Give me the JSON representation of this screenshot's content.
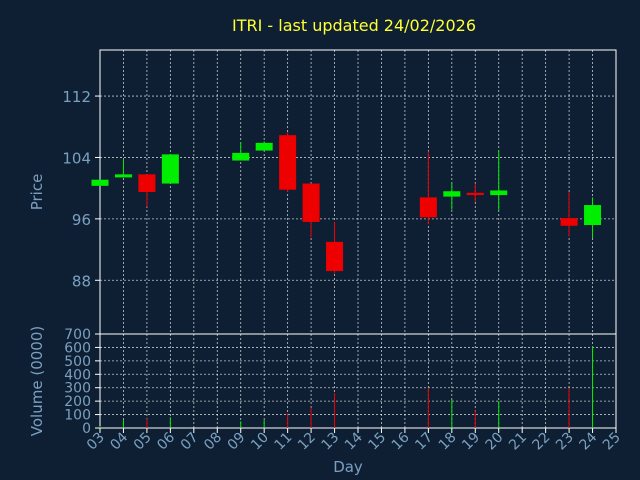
{
  "chart_data": {
    "type": "candlestick",
    "title": "ITRI - last updated 24/02/2026",
    "xlabel": "Day",
    "price_panel": {
      "ylabel": "Price",
      "ylim": [
        81,
        118
      ],
      "yticks": [
        88,
        96,
        104,
        112
      ],
      "grid": true
    },
    "volume_panel": {
      "ylabel": "Volume (0000)",
      "ylim": [
        0,
        700
      ],
      "yticks": [
        0,
        100,
        200,
        300,
        400,
        500,
        600,
        700
      ],
      "grid": true
    },
    "x_ticks": [
      "03",
      "04",
      "05",
      "06",
      "07",
      "08",
      "09",
      "10",
      "11",
      "12",
      "13",
      "14",
      "15",
      "16",
      "17",
      "18",
      "19",
      "20",
      "21",
      "22",
      "23",
      "24",
      "25"
    ],
    "candles": [
      {
        "day": "03",
        "open": 100.3,
        "high": 101.1,
        "low": 100.3,
        "close": 101.1,
        "volume": 15,
        "dir": "up"
      },
      {
        "day": "04",
        "open": 101.4,
        "high": 103.8,
        "low": 101.4,
        "close": 101.8,
        "volume": 60,
        "dir": "up"
      },
      {
        "day": "05",
        "open": 101.8,
        "high": 101.8,
        "low": 97.6,
        "close": 99.5,
        "volume": 70,
        "dir": "down"
      },
      {
        "day": "06",
        "open": 100.6,
        "high": 104.4,
        "low": 100.6,
        "close": 104.4,
        "volume": 80,
        "dir": "up"
      },
      {
        "day": "09",
        "open": 103.6,
        "high": 106.0,
        "low": 103.6,
        "close": 104.6,
        "volume": 50,
        "dir": "up"
      },
      {
        "day": "10",
        "open": 104.9,
        "high": 106.1,
        "low": 104.9,
        "close": 105.9,
        "volume": 60,
        "dir": "up"
      },
      {
        "day": "11",
        "open": 106.9,
        "high": 107.3,
        "low": 99.5,
        "close": 99.8,
        "volume": 110,
        "dir": "down"
      },
      {
        "day": "12",
        "open": 100.6,
        "high": 100.6,
        "low": 93.6,
        "close": 95.6,
        "volume": 150,
        "dir": "down"
      },
      {
        "day": "13",
        "open": 93.0,
        "high": 95.6,
        "low": 88.9,
        "close": 89.2,
        "volume": 260,
        "dir": "down"
      },
      {
        "day": "17",
        "open": 98.8,
        "high": 104.8,
        "low": 95.3,
        "close": 96.2,
        "volume": 300,
        "dir": "down"
      },
      {
        "day": "18",
        "open": 98.9,
        "high": 100.7,
        "low": 97.2,
        "close": 99.6,
        "volume": 210,
        "dir": "up"
      },
      {
        "day": "19",
        "open": 99.4,
        "high": 100.6,
        "low": 98.2,
        "close": 99.1,
        "volume": 130,
        "dir": "down"
      },
      {
        "day": "20",
        "open": 99.1,
        "high": 104.9,
        "low": 97.1,
        "close": 99.7,
        "volume": 200,
        "dir": "up"
      },
      {
        "day": "23",
        "open": 96.1,
        "high": 99.5,
        "low": 93.7,
        "close": 95.1,
        "volume": 300,
        "dir": "down"
      },
      {
        "day": "24",
        "open": 95.2,
        "high": 98.8,
        "low": 93.5,
        "close": 97.8,
        "volume": 610,
        "dir": "up"
      }
    ],
    "colors": {
      "background": "#0f1f33",
      "axes_bg": "#0f1f33",
      "axes_edge": "#ffffff",
      "grid": "#ffffff",
      "title": "#ffff33",
      "tick_label": "#7aa0c0",
      "up": "#00ee00",
      "down": "#ee0000"
    }
  }
}
